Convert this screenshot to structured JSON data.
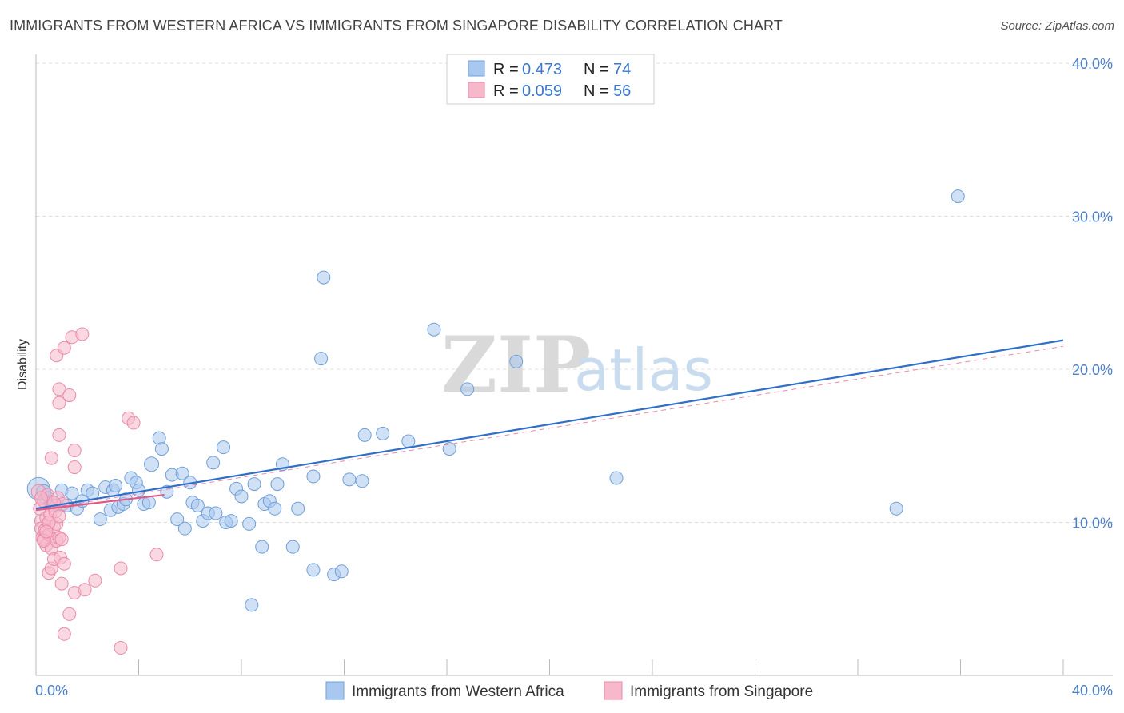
{
  "title": "IMMIGRANTS FROM WESTERN AFRICA VS IMMIGRANTS FROM SINGAPORE DISABILITY CORRELATION CHART",
  "source": "Source: ZipAtlas.com",
  "watermark": {
    "zip": "ZIP",
    "atlas": "atlas"
  },
  "colors": {
    "blue_fill": "#a9c8ef",
    "blue_stroke": "#6f9fd8",
    "blue_line": "#2f6fc8",
    "pink_fill": "#f6b8cb",
    "pink_stroke": "#ea8aaa",
    "pink_line": "#e05a86",
    "grid": "#dcdcdc",
    "tick_text": "#4a7fc9"
  },
  "legend": {
    "rows": [
      {
        "r_label": "R =",
        "r_value": "0.473",
        "n_label": "N =",
        "n_value": "74"
      },
      {
        "r_label": "R =",
        "r_value": "0.059",
        "n_label": "N =",
        "n_value": "56"
      }
    ]
  },
  "chart_data": {
    "type": "scatter",
    "xlabel": "",
    "ylabel": "Disability",
    "xlim": [
      0,
      40
    ],
    "ylim": [
      0,
      40
    ],
    "x_tick_labels": [
      "0.0%",
      "40.0%"
    ],
    "y_ticks": [
      10,
      20,
      30,
      40
    ],
    "y_tick_labels": [
      "10.0%",
      "20.0%",
      "30.0%",
      "40.0%"
    ],
    "legend_position": "top-center",
    "series": [
      {
        "name": "Immigrants from Western Africa",
        "color": "blue",
        "R": 0.473,
        "N": 74,
        "trend": {
          "x": [
            0,
            40
          ],
          "y": [
            10.9,
            21.9
          ]
        },
        "trend_dashed": {
          "x": [
            0,
            40
          ],
          "y": [
            10.8,
            21.5
          ]
        },
        "points": [
          [
            0.1,
            12.2,
            14
          ],
          [
            0.4,
            11.6,
            9
          ],
          [
            0.6,
            11.3,
            9
          ],
          [
            0.8,
            11.1,
            8
          ],
          [
            1.0,
            12.1,
            8
          ],
          [
            1.2,
            11.1,
            8
          ],
          [
            1.4,
            11.9,
            8
          ],
          [
            1.6,
            10.9,
            8
          ],
          [
            1.8,
            11.4,
            8
          ],
          [
            2.0,
            12.1,
            8
          ],
          [
            2.2,
            11.9,
            8
          ],
          [
            2.5,
            10.2,
            8
          ],
          [
            2.7,
            12.3,
            8
          ],
          [
            2.9,
            10.8,
            8
          ],
          [
            3.0,
            12.1,
            8
          ],
          [
            3.1,
            12.4,
            8
          ],
          [
            3.2,
            11.0,
            8
          ],
          [
            3.4,
            11.2,
            8
          ],
          [
            3.5,
            11.5,
            8
          ],
          [
            3.7,
            12.9,
            8
          ],
          [
            3.9,
            12.6,
            8
          ],
          [
            4.0,
            12.1,
            8
          ],
          [
            4.2,
            11.2,
            8
          ],
          [
            4.4,
            11.3,
            8
          ],
          [
            4.5,
            13.8,
            9
          ],
          [
            4.8,
            15.5,
            8
          ],
          [
            4.9,
            14.8,
            8
          ],
          [
            5.1,
            12.0,
            8
          ],
          [
            5.3,
            13.1,
            8
          ],
          [
            5.5,
            10.2,
            8
          ],
          [
            5.7,
            13.2,
            8
          ],
          [
            5.8,
            9.6,
            8
          ],
          [
            6.0,
            12.6,
            8
          ],
          [
            6.1,
            11.3,
            8
          ],
          [
            6.3,
            11.1,
            8
          ],
          [
            6.5,
            10.1,
            8
          ],
          [
            6.7,
            10.6,
            8
          ],
          [
            6.9,
            13.9,
            8
          ],
          [
            7.0,
            10.6,
            8
          ],
          [
            7.3,
            14.9,
            8
          ],
          [
            7.4,
            10.0,
            8
          ],
          [
            7.6,
            10.1,
            8
          ],
          [
            7.8,
            12.2,
            8
          ],
          [
            8.0,
            11.7,
            8
          ],
          [
            8.3,
            9.9,
            8
          ],
          [
            8.5,
            12.5,
            8
          ],
          [
            8.8,
            8.4,
            8
          ],
          [
            8.9,
            11.2,
            8
          ],
          [
            9.1,
            11.4,
            8
          ],
          [
            9.3,
            10.9,
            8
          ],
          [
            9.4,
            12.5,
            8
          ],
          [
            9.6,
            13.8,
            8
          ],
          [
            10.0,
            8.4,
            8
          ],
          [
            10.2,
            10.9,
            8
          ],
          [
            10.8,
            13.0,
            8
          ],
          [
            10.8,
            6.9,
            8
          ],
          [
            11.2,
            26.0,
            8
          ],
          [
            11.1,
            20.7,
            8
          ],
          [
            11.6,
            6.6,
            8
          ],
          [
            11.9,
            6.8,
            8
          ],
          [
            12.2,
            12.8,
            8
          ],
          [
            12.7,
            12.7,
            8
          ],
          [
            8.4,
            4.6,
            8
          ],
          [
            12.8,
            15.7,
            8
          ],
          [
            13.5,
            15.8,
            8
          ],
          [
            14.5,
            15.3,
            8
          ],
          [
            15.5,
            22.6,
            8
          ],
          [
            16.1,
            14.8,
            8
          ],
          [
            16.8,
            18.7,
            8
          ],
          [
            18.7,
            20.5,
            8
          ],
          [
            22.6,
            12.9,
            8
          ],
          [
            33.5,
            10.9,
            8
          ],
          [
            35.9,
            31.3,
            8
          ],
          [
            0.3,
            12.0,
            9
          ]
        ]
      },
      {
        "name": "Immigrants from Singapore",
        "color": "pink",
        "R": 0.059,
        "N": 56,
        "trend": {
          "x": [
            0,
            5.0
          ],
          "y": [
            10.8,
            11.8
          ]
        },
        "points": [
          [
            0.1,
            12.0,
            9
          ],
          [
            0.15,
            10.9,
            8
          ],
          [
            0.2,
            10.1,
            8
          ],
          [
            0.2,
            9.6,
            8
          ],
          [
            0.25,
            9.0,
            8
          ],
          [
            0.3,
            11.4,
            8
          ],
          [
            0.3,
            8.9,
            8
          ],
          [
            0.35,
            9.5,
            8
          ],
          [
            0.4,
            10.3,
            8
          ],
          [
            0.4,
            8.5,
            8
          ],
          [
            0.45,
            11.8,
            8
          ],
          [
            0.5,
            9.2,
            8
          ],
          [
            0.5,
            6.7,
            8
          ],
          [
            0.55,
            10.5,
            8
          ],
          [
            0.6,
            8.3,
            8
          ],
          [
            0.6,
            7.0,
            8
          ],
          [
            0.65,
            11.1,
            8
          ],
          [
            0.7,
            9.7,
            8
          ],
          [
            0.7,
            7.6,
            8
          ],
          [
            0.75,
            10.7,
            8
          ],
          [
            0.8,
            9.9,
            8
          ],
          [
            0.8,
            8.8,
            8
          ],
          [
            0.85,
            11.6,
            8
          ],
          [
            0.9,
            10.4,
            8
          ],
          [
            0.9,
            9.0,
            8
          ],
          [
            0.95,
            7.7,
            8
          ],
          [
            1.0,
            6.0,
            8
          ],
          [
            1.05,
            11.2,
            8
          ],
          [
            1.1,
            7.3,
            8
          ],
          [
            1.1,
            2.7,
            8
          ],
          [
            1.3,
            4.0,
            8
          ],
          [
            1.5,
            5.4,
            8
          ],
          [
            1.9,
            5.6,
            8
          ],
          [
            2.3,
            6.2,
            8
          ],
          [
            3.3,
            1.8,
            8
          ],
          [
            3.3,
            7.0,
            8
          ],
          [
            4.7,
            7.9,
            8
          ],
          [
            3.6,
            16.8,
            8
          ],
          [
            3.8,
            16.5,
            8
          ],
          [
            0.6,
            14.2,
            8
          ],
          [
            0.9,
            15.7,
            8
          ],
          [
            1.5,
            14.7,
            8
          ],
          [
            1.5,
            13.6,
            8
          ],
          [
            0.9,
            18.7,
            8
          ],
          [
            0.9,
            17.8,
            8
          ],
          [
            1.3,
            18.3,
            8
          ],
          [
            0.8,
            20.9,
            8
          ],
          [
            1.1,
            21.4,
            8
          ],
          [
            1.4,
            22.1,
            8
          ],
          [
            1.8,
            22.3,
            8
          ],
          [
            0.3,
            8.8,
            8
          ],
          [
            0.5,
            10.0,
            8
          ],
          [
            0.7,
            11.3,
            8
          ],
          [
            1.0,
            8.9,
            8
          ],
          [
            0.2,
            11.6,
            8
          ],
          [
            0.4,
            9.4,
            8
          ]
        ]
      }
    ]
  }
}
